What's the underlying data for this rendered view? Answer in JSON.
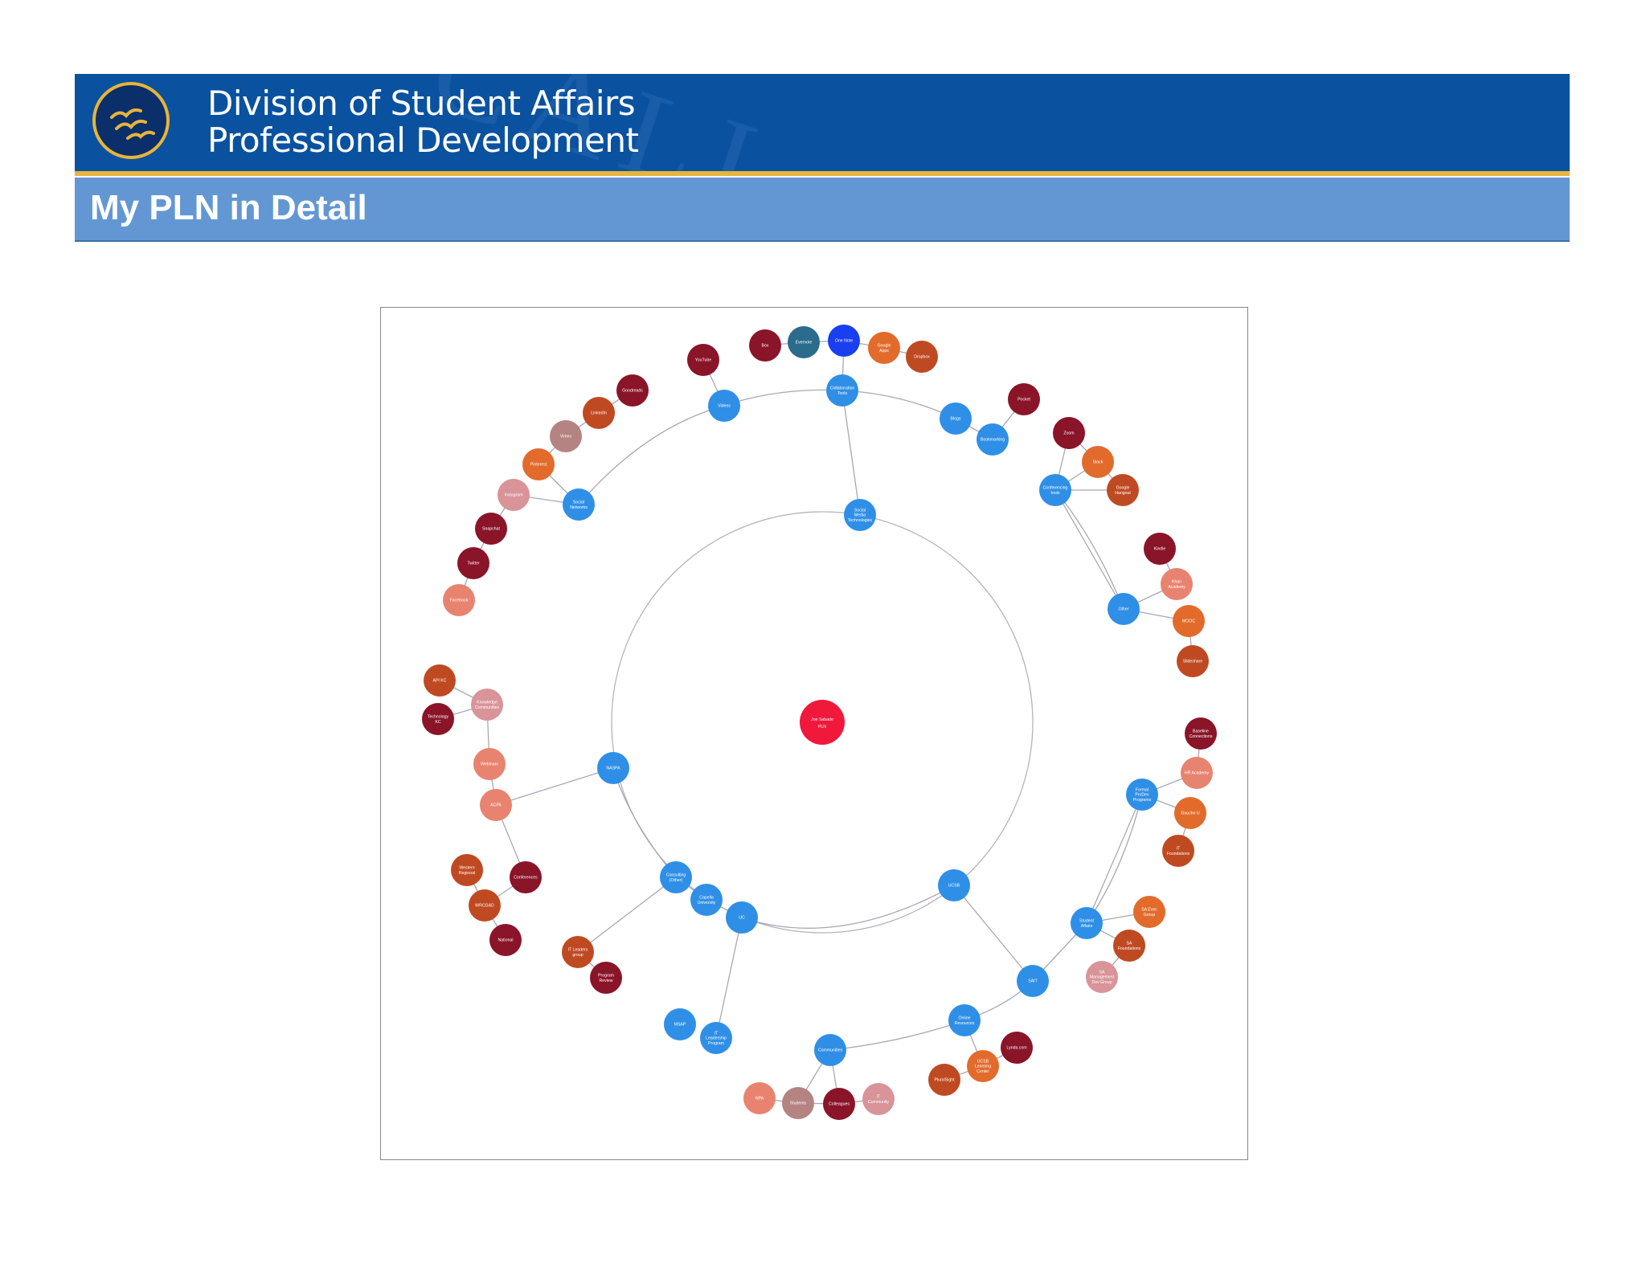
{
  "header": {
    "line1": "Division of Student Affairs",
    "line2": "Professional Development",
    "logo_icon": "seagull-logo-icon",
    "colors": {
      "banner": "#0a52a0",
      "stripe": "#e8b43a",
      "titlebar": "#6397d4"
    }
  },
  "page_title": "My PLN in Detail",
  "diagram": {
    "type": "radial-network",
    "center": "Joe Sabado PLN",
    "palette": {
      "center": "#f0193c",
      "category": "#2f8fe6",
      "dark_red": "#8a1428",
      "red": "#a32a24",
      "orange": "#e26b2c",
      "salmon": "#e88370",
      "rust": "#bf4a22",
      "pink": "#d89499",
      "mauve": "#b48382",
      "teal": "#2b6b8c",
      "blue": "#1a3ff0"
    },
    "nodes": {
      "center": "Joe Sabado PLN",
      "social": "Social Media Technologies",
      "ucsb": "UCSB",
      "natspa": "NASPA",
      "uc": "UC",
      "capella": "Capella University",
      "consulting": "Consulting (Other)",
      "collab": "Collaboration Tools",
      "videos": "Videos",
      "snets": "Social Networks",
      "blogs": "Blogs",
      "bookmark": "Bookmarking",
      "conf": "Conferencing tools",
      "other": "Other",
      "formal": "Formal ProDev Programs",
      "sa": "Student Affairs",
      "sait": "SAIT",
      "online": "Online Resources",
      "communities": "Communities",
      "msap": "MSAP",
      "itlp": "IT Leadership Program",
      "itleaders": "IT Leaders group",
      "progrev": "Program Review",
      "webinars": "Webinars",
      "acpa": "ACPA",
      "knowledge": "Knowledge Communities",
      "box": "Box",
      "evernote": "Evernote",
      "onenote": "One Note",
      "gapps": "Google Apps",
      "dropbox": "Dropbox",
      "youtube": "YouTube",
      "goodreads": "Goodreads",
      "linkedin": "LinkedIn",
      "vimeo": "Vimeo",
      "pinterest": "Pinterest",
      "instagram": "Instagram",
      "snapchat": "Snapchat",
      "twitter": "Twitter",
      "facebook": "Facebook",
      "pocket": "Pocket",
      "zoom": "Zoom",
      "slack": "Slack",
      "hangout": "Google Hangout",
      "kindle": "Kindle",
      "khan": "Khan Academy",
      "mooc": "MOOC",
      "slideshare": "Slideshare",
      "baseline": "Baseline Connections",
      "hrac": "HR Academy",
      "gauchou": "Gaucho U",
      "itfound": "IT Foundations",
      "saexec": "SA Exec Group",
      "safound": "SA Foundations",
      "samgmt": "SA Management Dev Group",
      "lynda": "Lynda.com",
      "ucsblc": "UCSB Learning Center",
      "pluralsight": "PluralSight",
      "npa": "NPA",
      "students": "Students",
      "colleagues": "Colleagues",
      "itcomm": "IT Community",
      "apikc": "API KC",
      "techkc": "Technology KC",
      "western": "Western Regional",
      "conferences": "Conferences",
      "wrcgad": "WRCGAD",
      "national": "National"
    }
  }
}
